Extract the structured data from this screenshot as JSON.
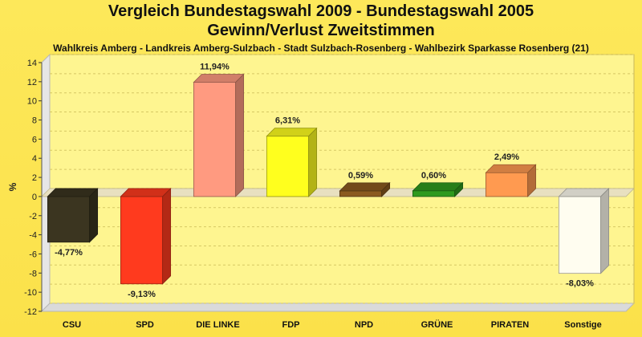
{
  "chart_data": {
    "type": "bar",
    "title": "Vergleich Bundestagswahl 2009 - Bundestagswahl 2005",
    "title2": "Gewinn/Verlust Zweitstimmen",
    "subtitle": "Wahlkreis Amberg - Landkreis Amberg-Sulzbach - Stadt Sulzbach-Rosenberg - Wahlbezirk Sparkasse Rosenberg (21)",
    "ylabel": "%",
    "ylim": [
      -12,
      14
    ],
    "yticks": [
      14,
      12,
      10,
      8,
      6,
      4,
      2,
      0,
      -2,
      -4,
      -6,
      -8,
      -10,
      -12
    ],
    "grid": true,
    "categories": [
      "CSU",
      "SPD",
      "DIE LINKE",
      "FDP",
      "NPD",
      "GRÜNE",
      "PIRATEN",
      "Sonstige"
    ],
    "values": [
      -4.77,
      -9.13,
      11.94,
      6.31,
      0.59,
      0.6,
      2.49,
      -8.03
    ],
    "value_labels": [
      "-4,77%",
      "-9,13%",
      "11,94%",
      "6,31%",
      "0,59%",
      "0,60%",
      "2,49%",
      "-8,03%"
    ],
    "colors": [
      "#3b3520",
      "#ff3a1e",
      "#ff9a80",
      "#ffff1e",
      "#8b5a20",
      "#2f9a1e",
      "#ff9a50",
      "#fffdf0"
    ]
  }
}
